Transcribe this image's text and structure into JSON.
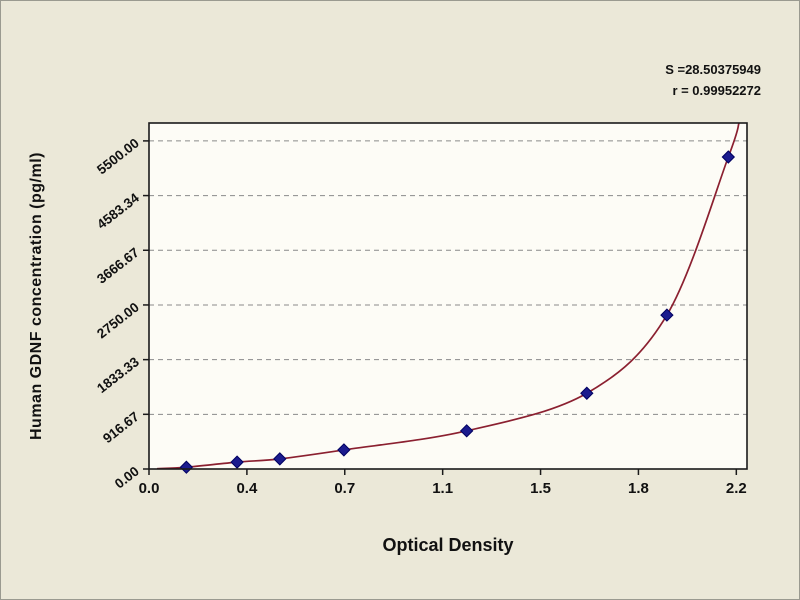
{
  "window": {
    "background": "#ebe8d8",
    "plot_background": "#fdfcf6",
    "border_color": "#9a9a90",
    "frame_color": "#1a1a1a"
  },
  "annotations": {
    "s_value": "S =28.50375949",
    "r_value": "r = 0.99952272"
  },
  "chart_data": {
    "type": "scatter",
    "title": "",
    "xlabel": "Optical Density",
    "ylabel": "Human GDNF concentration (pg/ml)",
    "xlim": [
      0,
      2.24
    ],
    "ylim": [
      0,
      5800
    ],
    "grid": {
      "horizontal": true,
      "style": "dashed",
      "color": "#8a8a8a"
    },
    "x_ticks": {
      "values": [
        0,
        0.3667,
        0.7333,
        1.1,
        1.4667,
        1.8333,
        2.2
      ],
      "labels": [
        "0.0",
        "0.4",
        "0.7",
        "1.1",
        "1.5",
        "1.8",
        "2.2"
      ]
    },
    "y_ticks": {
      "values": [
        0,
        916.67,
        1833.33,
        2750,
        3666.67,
        4583.34,
        5500
      ],
      "labels": [
        "0.00",
        "916.67",
        "1833.33",
        "2750.00",
        "3666.67",
        "4583.34",
        "5500.00"
      ]
    },
    "legend": "none",
    "series": [
      {
        "name": "standard-points",
        "type": "scatter",
        "marker": "diamond",
        "color": "#1b1b8e",
        "x": [
          0.14,
          0.33,
          0.49,
          0.73,
          1.19,
          1.64,
          1.94,
          2.17
        ],
        "y": [
          30,
          115,
          170,
          320,
          640,
          1270,
          2580,
          5230
        ]
      },
      {
        "name": "fitted-curve",
        "type": "line",
        "color": "#8b2030",
        "x": [
          0.03,
          0.14,
          0.33,
          0.49,
          0.73,
          1.19,
          1.64,
          1.94,
          2.17,
          2.21
        ],
        "y": [
          5,
          30,
          115,
          170,
          320,
          640,
          1270,
          2580,
          5230,
          5800
        ]
      }
    ]
  }
}
